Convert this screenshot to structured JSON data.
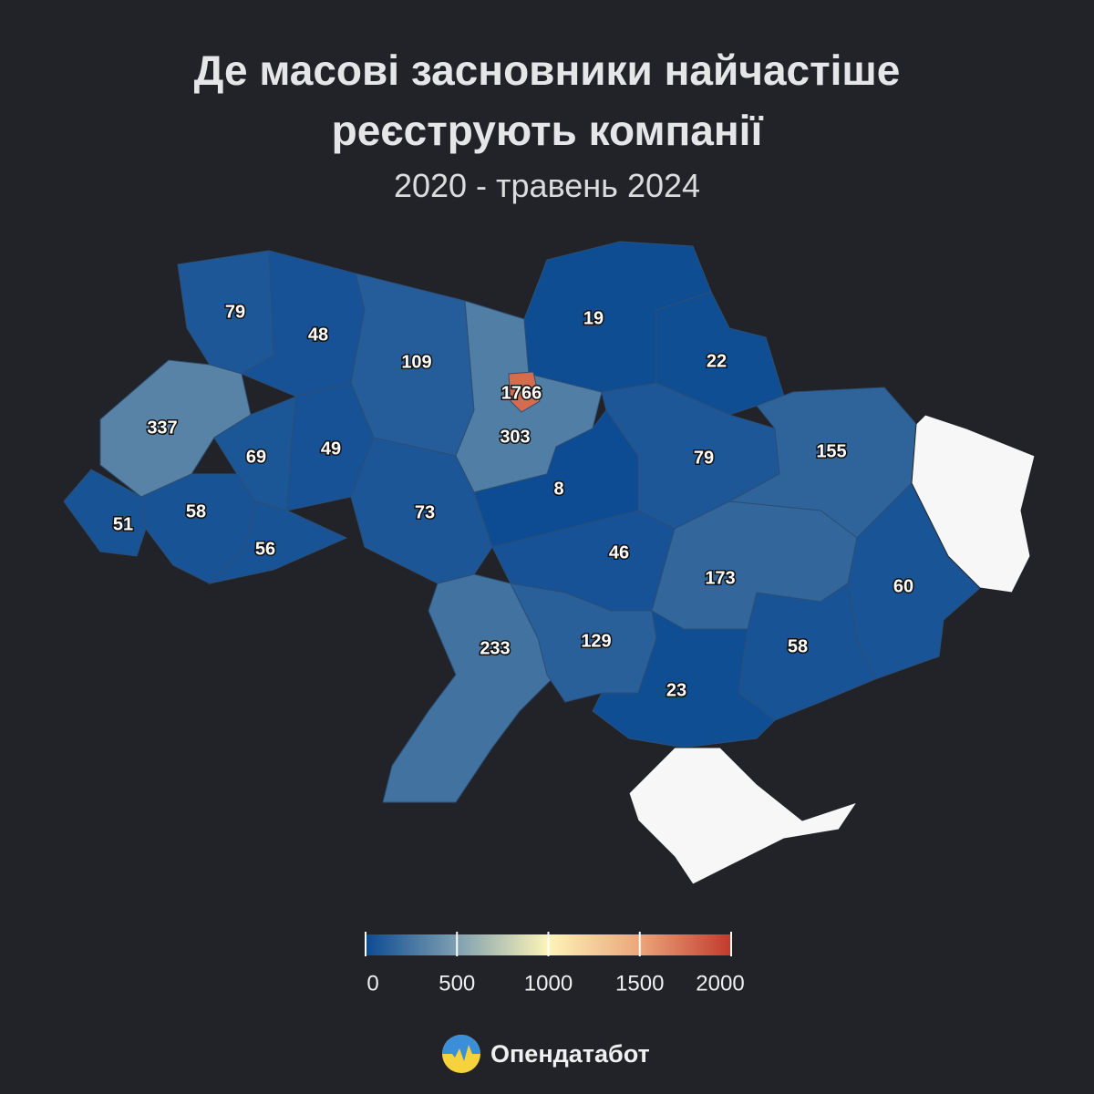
{
  "chart_data": {
    "type": "choropleth",
    "title": "Де масові засновники найчастіше реєструють компанії",
    "subtitle": "2020 - травень 2024",
    "values": [
      79,
      48,
      109,
      1766,
      303,
      19,
      22,
      337,
      69,
      49,
      73,
      8,
      79,
      155,
      51,
      58,
      56,
      46,
      173,
      60,
      233,
      129,
      58,
      23
    ],
    "colorscale": [
      "#0b4a92",
      "#7e9fb0",
      "#fdf4b8",
      "#eba57a",
      "#c0392b"
    ],
    "legend_lim": [
      0,
      2000
    ],
    "legend_ticks": [
      0,
      500,
      1000,
      1500,
      2000
    ]
  },
  "brand": "Опендатабот"
}
